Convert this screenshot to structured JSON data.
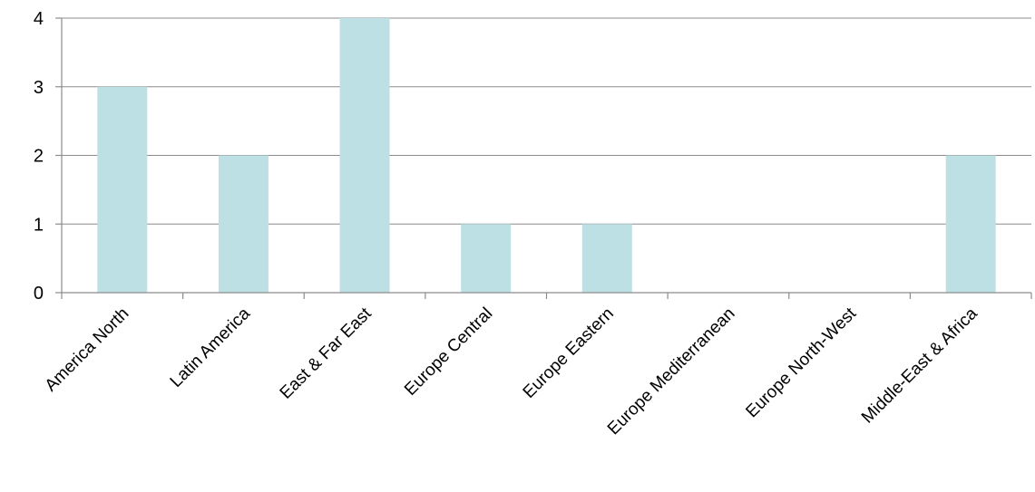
{
  "chart_data": {
    "type": "bar",
    "categories": [
      "America North",
      "Latin America",
      "East & Far East",
      "Europe Central",
      "Europe Eastern",
      "Europe Mediterranean",
      "Europe North-West",
      "Middle-East & Africa"
    ],
    "values": [
      3,
      2,
      4,
      1,
      1,
      0,
      0,
      2
    ],
    "yticks": [
      "0",
      "1",
      "2",
      "3",
      "4"
    ],
    "ylim": [
      0,
      4
    ],
    "grid": true,
    "legend": "none",
    "bar_color": "#bde0e4",
    "axis_color": "#8c8c8c"
  }
}
